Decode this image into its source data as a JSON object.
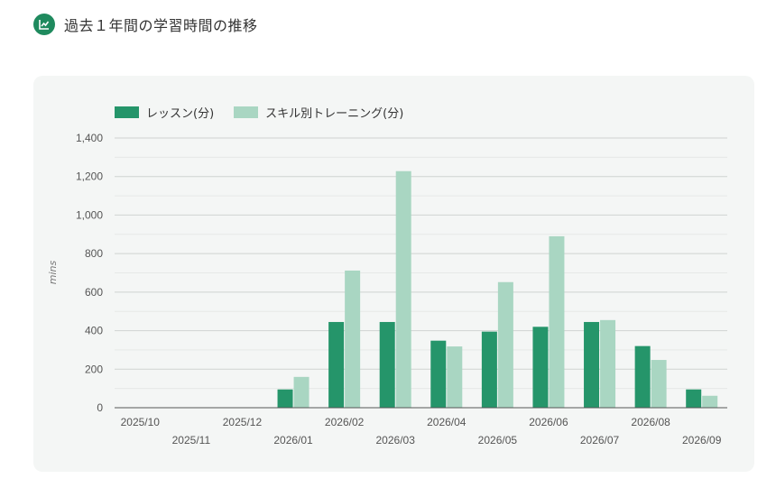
{
  "header": {
    "title": "過去１年間の学習時間の推移",
    "icon": "chart-icon",
    "icon_color": "#1f8a5e"
  },
  "chart_data": {
    "type": "bar",
    "title": "",
    "xlabel": "",
    "ylabel": "mins",
    "ylim": [
      0,
      1400
    ],
    "yticks": [
      "0",
      "200",
      "400",
      "600",
      "800",
      "1,000",
      "1,200",
      "1,400"
    ],
    "grid": true,
    "legend_position": "top-left",
    "categories": [
      "2025/10",
      "2025/11",
      "2025/12",
      "2026/01",
      "2026/02",
      "2026/03",
      "2026/04",
      "2026/05",
      "2026/06",
      "2026/07",
      "2026/08",
      "2026/09"
    ],
    "series": [
      {
        "name": "レッスン(分)",
        "color": "#25956a",
        "values": [
          0,
          0,
          0,
          95,
          445,
          445,
          348,
          395,
          420,
          445,
          320,
          95
        ]
      },
      {
        "name": "スキル別トレーニング(分)",
        "color": "#a9d6c2",
        "values": [
          0,
          0,
          0,
          160,
          712,
          1228,
          318,
          652,
          890,
          455,
          248,
          62
        ]
      }
    ]
  }
}
